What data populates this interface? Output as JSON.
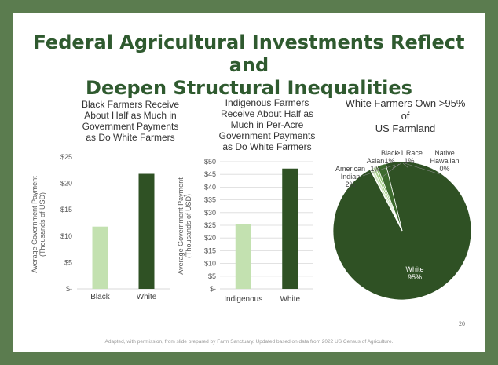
{
  "slide": {
    "title_line1": "Federal Agricultural Investments Reflect and",
    "title_line2": "Deepen Structural Inequalities",
    "footer": "Adapted, with permission, from slide prepared by Farm Sanctuary. Updated based on data from 2022 US Census of Agriculture.",
    "page_number": "20",
    "frame_color": "#5b7c4f",
    "title_color": "#2f5a2f"
  },
  "chart_data": [
    {
      "type": "bar",
      "title_lines": [
        "Black Farmers Receive",
        "About Half as Much in",
        "Government Payments",
        "as Do White Farmers"
      ],
      "categories": [
        "Black",
        "White"
      ],
      "values": [
        11.8,
        21.8
      ],
      "colors": [
        "#c3e1b0",
        "#2f5124"
      ],
      "ylabel_lines": [
        "Average Government Payment",
        "(Thousands of USD)"
      ],
      "ylim": [
        0,
        25
      ],
      "ticks": [
        0,
        5,
        10,
        15,
        20,
        25
      ],
      "tick_labels": [
        "$-",
        "$5",
        "$10",
        "$15",
        "$20",
        "$25"
      ],
      "grid": false
    },
    {
      "type": "bar",
      "title_lines": [
        "Indigenous Farmers",
        "Receive About Half as",
        "Much in Per-Acre",
        "Government Payments",
        "as Do White Farmers"
      ],
      "categories": [
        "Indigenous",
        "White"
      ],
      "values": [
        25.5,
        47.3
      ],
      "colors": [
        "#c3e1b0",
        "#2f5124"
      ],
      "ylabel_lines": [
        "Average Government Payment",
        "(Thousands of USD)"
      ],
      "ylim": [
        0,
        50
      ],
      "ticks": [
        0,
        5,
        10,
        15,
        20,
        25,
        30,
        35,
        40,
        45,
        50
      ],
      "tick_labels": [
        "$-",
        "$5",
        "$10",
        "$15",
        "$20",
        "$25",
        "$30",
        "$35",
        "$40",
        "$45",
        "$50"
      ],
      "grid": true
    },
    {
      "type": "pie",
      "title_lines": [
        "White Farmers Own >95% of",
        "US Farmland"
      ],
      "slices": [
        {
          "label": "White",
          "pct_label": "95%",
          "value": 95.2,
          "color": "#2f5124"
        },
        {
          "label": "Native Hawaiian",
          "pct_label": "0%",
          "value": 0.15,
          "color": "#eef6e6"
        },
        {
          "label": ">1 Race",
          "pct_label": "1%",
          "value": 0.6,
          "color": "#cfe6bf"
        },
        {
          "label": "Black",
          "pct_label": "1%",
          "value": 0.55,
          "color": "#a9d08e"
        },
        {
          "label": "Asian",
          "pct_label": "1%",
          "value": 0.5,
          "color": "#8bbf6c"
        },
        {
          "label": "American Indian",
          "pct_label": "2%",
          "value": 2.0,
          "color": "#3d6b2e"
        }
      ]
    }
  ]
}
